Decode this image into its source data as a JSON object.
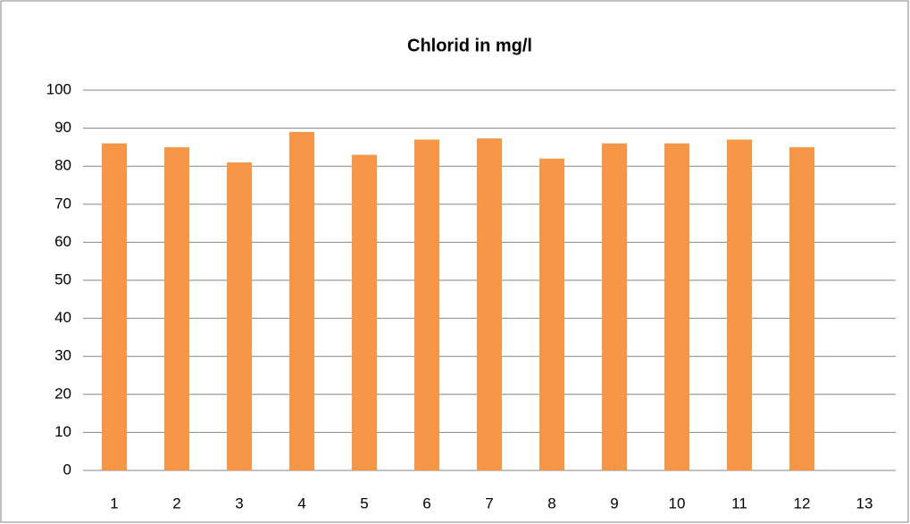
{
  "chart_data": {
    "type": "bar",
    "title": "Chlorid in mg/l",
    "categories": [
      "1",
      "2",
      "3",
      "4",
      "5",
      "6",
      "7",
      "8",
      "9",
      "10",
      "11",
      "12",
      "13"
    ],
    "values": [
      86,
      85,
      81,
      89,
      83,
      87,
      87.3,
      82,
      86,
      86,
      87,
      85,
      null
    ],
    "color": "#f79646",
    "ylim": [
      0,
      100
    ],
    "yticks": [
      0,
      10,
      20,
      30,
      40,
      50,
      60,
      70,
      80,
      90,
      100
    ],
    "grid": true
  }
}
